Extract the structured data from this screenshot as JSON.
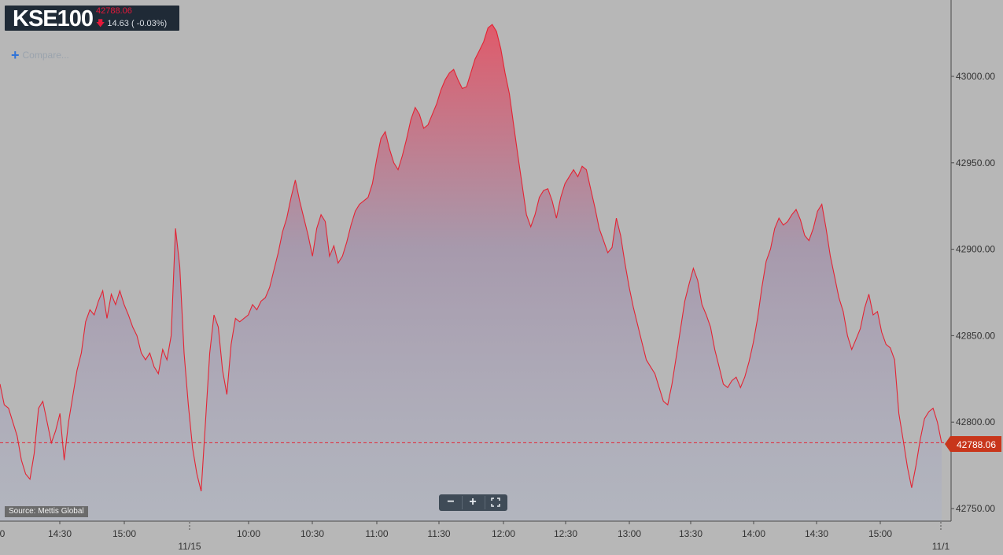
{
  "ticker": {
    "symbol": "KSE100",
    "last": "42788.06",
    "change": "14.63 ( -0.03%)",
    "arrow": "down-arrow"
  },
  "compare_label": "Compare...",
  "source_label": "Source: Mettis Global",
  "price_label": "42788.06",
  "zoom": {
    "minus": "−",
    "plus": "+",
    "fullscreen": "fullscreen-icon"
  },
  "colors": {
    "line": "#e32434",
    "price_badge": "#c8361b",
    "background": "#b7b7b7"
  },
  "chart_data": {
    "type": "area",
    "ylim": [
      42745,
      43045
    ],
    "y_ticks": [
      42750,
      42800,
      42850,
      42900,
      42950,
      43000
    ],
    "y_tick_labels": [
      "42750.00",
      "42800.00",
      "42850.00",
      "42900.00",
      "42950.00",
      "43000.00"
    ],
    "x_tick_labels": [
      "14:30",
      "15:00",
      "10:00",
      "10:30",
      "11:00",
      "11:30",
      "12:00",
      "12:30",
      "13:00",
      "13:30",
      "14:00",
      "14:30",
      "15:00"
    ],
    "date_labels": [
      "11/15",
      "11/1"
    ],
    "last_value": 42788.06,
    "grid": false,
    "series": [
      {
        "values": [
          42822,
          42810,
          42808,
          42800,
          42792,
          42778,
          42770,
          42767,
          42782,
          42808,
          42812,
          42800,
          42788,
          42795,
          42805,
          42778,
          42800,
          42815,
          42830,
          42840,
          42858,
          42865,
          42862,
          42870,
          42876,
          42860,
          42874,
          42868,
          42876,
          42868,
          42862,
          42855,
          42850,
          42840,
          42836,
          42840,
          42832,
          42828,
          42842,
          42836,
          42850,
          42912,
          42890,
          42840,
          42810,
          42785,
          42770,
          42760,
          42800,
          42840,
          42862,
          42855,
          42830,
          42816,
          42845,
          42860,
          42858,
          42860,
          42862,
          42868,
          42865,
          42870,
          42872,
          42878,
          42888,
          42898,
          42910,
          42918,
          42930,
          42940,
          42928,
          42918,
          42908,
          42896,
          42912,
          42920,
          42916,
          42896,
          42902,
          42892,
          42896,
          42904,
          42914,
          42922,
          42926,
          42928,
          42930,
          42938,
          42952,
          42964,
          42968,
          42958,
          42950,
          42946,
          42954,
          42964,
          42975,
          42982,
          42978,
          42970,
          42972,
          42978,
          42984,
          42992,
          42998,
          43002,
          43004,
          42998,
          42993,
          42994,
          43002,
          43010,
          43015,
          43020,
          43028,
          43030,
          43026,
          43016,
          43002,
          42990,
          42972,
          42954,
          42937,
          42920,
          42913,
          42920,
          42930,
          42934,
          42935,
          42928,
          42918,
          42930,
          42938,
          42942,
          42946,
          42942,
          42948,
          42946,
          42935,
          42924,
          42912,
          42905,
          42898,
          42901,
          42918,
          42908,
          42892,
          42878,
          42866,
          42856,
          42846,
          42836,
          42832,
          42828,
          42820,
          42812,
          42810,
          42822,
          42838,
          42854,
          42870,
          42880,
          42889,
          42882,
          42868,
          42862,
          42855,
          42842,
          42832,
          42822,
          42820,
          42824,
          42826,
          42820,
          42826,
          42835,
          42846,
          42860,
          42878,
          42893,
          42900,
          42912,
          42918,
          42914,
          42916,
          42920,
          42923,
          42917,
          42908,
          42905,
          42912,
          42922,
          42926,
          42912,
          42896,
          42884,
          42872,
          42864,
          42850,
          42842,
          42848,
          42854,
          42866,
          42874,
          42862,
          42864,
          42852,
          42845,
          42843,
          42836,
          42805,
          42790,
          42774,
          42762,
          42775,
          42790,
          42802,
          42806,
          42808,
          42800,
          42788
        ]
      }
    ]
  }
}
